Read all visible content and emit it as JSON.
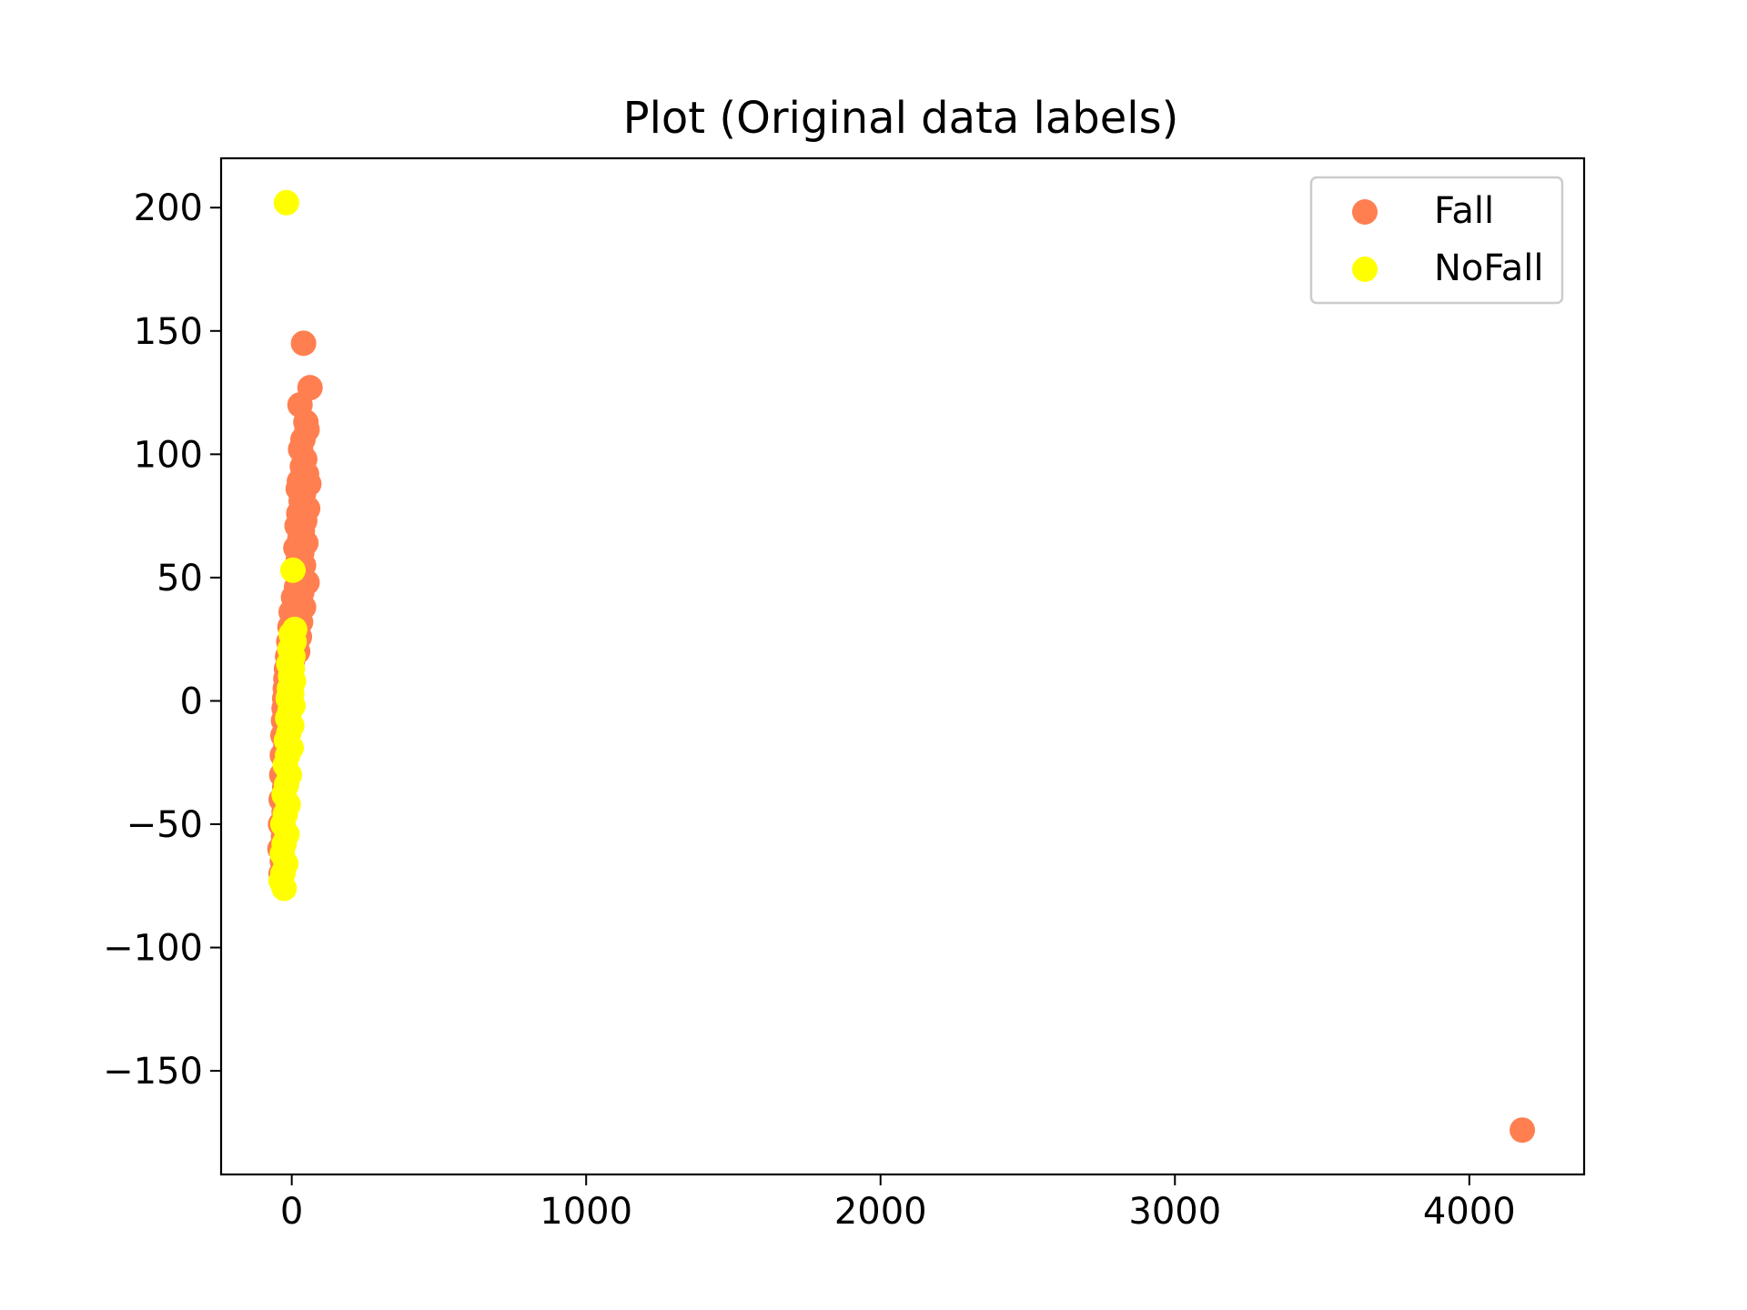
{
  "chart_data": {
    "type": "scatter",
    "title": "Plot (Original data labels)",
    "xlabel": "",
    "ylabel": "",
    "xlim": [
      -240,
      4390
    ],
    "ylim": [
      -192,
      220
    ],
    "x_ticks": [
      0,
      1000,
      2000,
      3000,
      4000
    ],
    "x_tick_labels": [
      "0",
      "1000",
      "2000",
      "3000",
      "4000"
    ],
    "y_ticks": [
      -150,
      -100,
      -50,
      0,
      50,
      100,
      150,
      200
    ],
    "y_tick_labels": [
      "−150",
      "−100",
      "−50",
      "0",
      "50",
      "100",
      "150",
      "200"
    ],
    "grid": false,
    "legend": {
      "position": "top-right",
      "entries": [
        "Fall",
        "NoFall"
      ]
    },
    "series": [
      {
        "name": "Fall",
        "color": "#ff7f50",
        "points": [
          [
            40,
            145
          ],
          [
            62,
            127
          ],
          [
            28,
            120
          ],
          [
            48,
            113
          ],
          [
            52,
            110
          ],
          [
            38,
            106
          ],
          [
            30,
            102
          ],
          [
            44,
            98
          ],
          [
            36,
            95
          ],
          [
            50,
            92
          ],
          [
            26,
            89
          ],
          [
            58,
            88
          ],
          [
            22,
            86
          ],
          [
            40,
            84
          ],
          [
            32,
            81
          ],
          [
            54,
            78
          ],
          [
            24,
            76
          ],
          [
            44,
            73
          ],
          [
            18,
            71
          ],
          [
            36,
            69
          ],
          [
            28,
            66
          ],
          [
            48,
            64
          ],
          [
            14,
            62
          ],
          [
            34,
            60
          ],
          [
            22,
            57
          ],
          [
            40,
            55
          ],
          [
            10,
            53
          ],
          [
            30,
            51
          ],
          [
            52,
            48
          ],
          [
            16,
            46
          ],
          [
            34,
            44
          ],
          [
            6,
            42
          ],
          [
            24,
            40
          ],
          [
            40,
            38
          ],
          [
            -2,
            36
          ],
          [
            18,
            34
          ],
          [
            30,
            32
          ],
          [
            -6,
            30
          ],
          [
            12,
            28
          ],
          [
            26,
            26
          ],
          [
            -10,
            24
          ],
          [
            6,
            22
          ],
          [
            20,
            20
          ],
          [
            -14,
            18
          ],
          [
            2,
            16
          ],
          [
            -18,
            13
          ],
          [
            -4,
            11
          ],
          [
            -20,
            9
          ],
          [
            -8,
            7
          ],
          [
            -22,
            5
          ],
          [
            -12,
            3
          ],
          [
            -24,
            1
          ],
          [
            -14,
            -1
          ],
          [
            -26,
            -3
          ],
          [
            -16,
            -5
          ],
          [
            -28,
            -8
          ],
          [
            -18,
            -11
          ],
          [
            -30,
            -14
          ],
          [
            -20,
            -18
          ],
          [
            -32,
            -22
          ],
          [
            -22,
            -26
          ],
          [
            -34,
            -30
          ],
          [
            -24,
            -35
          ],
          [
            -36,
            -40
          ],
          [
            -26,
            -45
          ],
          [
            -38,
            -50
          ],
          [
            -28,
            -55
          ],
          [
            -40,
            -60
          ],
          [
            -32,
            -65
          ],
          [
            -36,
            -70
          ],
          [
            4180,
            -174
          ]
        ]
      },
      {
        "name": "NoFall",
        "color": "#ffff00",
        "points": [
          [
            -18,
            202
          ],
          [
            4,
            53
          ],
          [
            10,
            29
          ],
          [
            -2,
            27
          ],
          [
            8,
            24
          ],
          [
            -6,
            21
          ],
          [
            4,
            18
          ],
          [
            -10,
            15
          ],
          [
            2,
            13
          ],
          [
            -4,
            10
          ],
          [
            6,
            8
          ],
          [
            -8,
            5
          ],
          [
            0,
            3
          ],
          [
            -12,
            1
          ],
          [
            4,
            -2
          ],
          [
            -6,
            -4
          ],
          [
            -14,
            -7
          ],
          [
            0,
            -10
          ],
          [
            -10,
            -13
          ],
          [
            -18,
            -16
          ],
          [
            -2,
            -19
          ],
          [
            -14,
            -22
          ],
          [
            -22,
            -26
          ],
          [
            -8,
            -30
          ],
          [
            -18,
            -34
          ],
          [
            -26,
            -38
          ],
          [
            -12,
            -42
          ],
          [
            -22,
            -46
          ],
          [
            -30,
            -50
          ],
          [
            -16,
            -54
          ],
          [
            -26,
            -58
          ],
          [
            -32,
            -62
          ],
          [
            -20,
            -66
          ],
          [
            -30,
            -70
          ],
          [
            -36,
            -73
          ],
          [
            -26,
            -76
          ]
        ]
      }
    ]
  }
}
